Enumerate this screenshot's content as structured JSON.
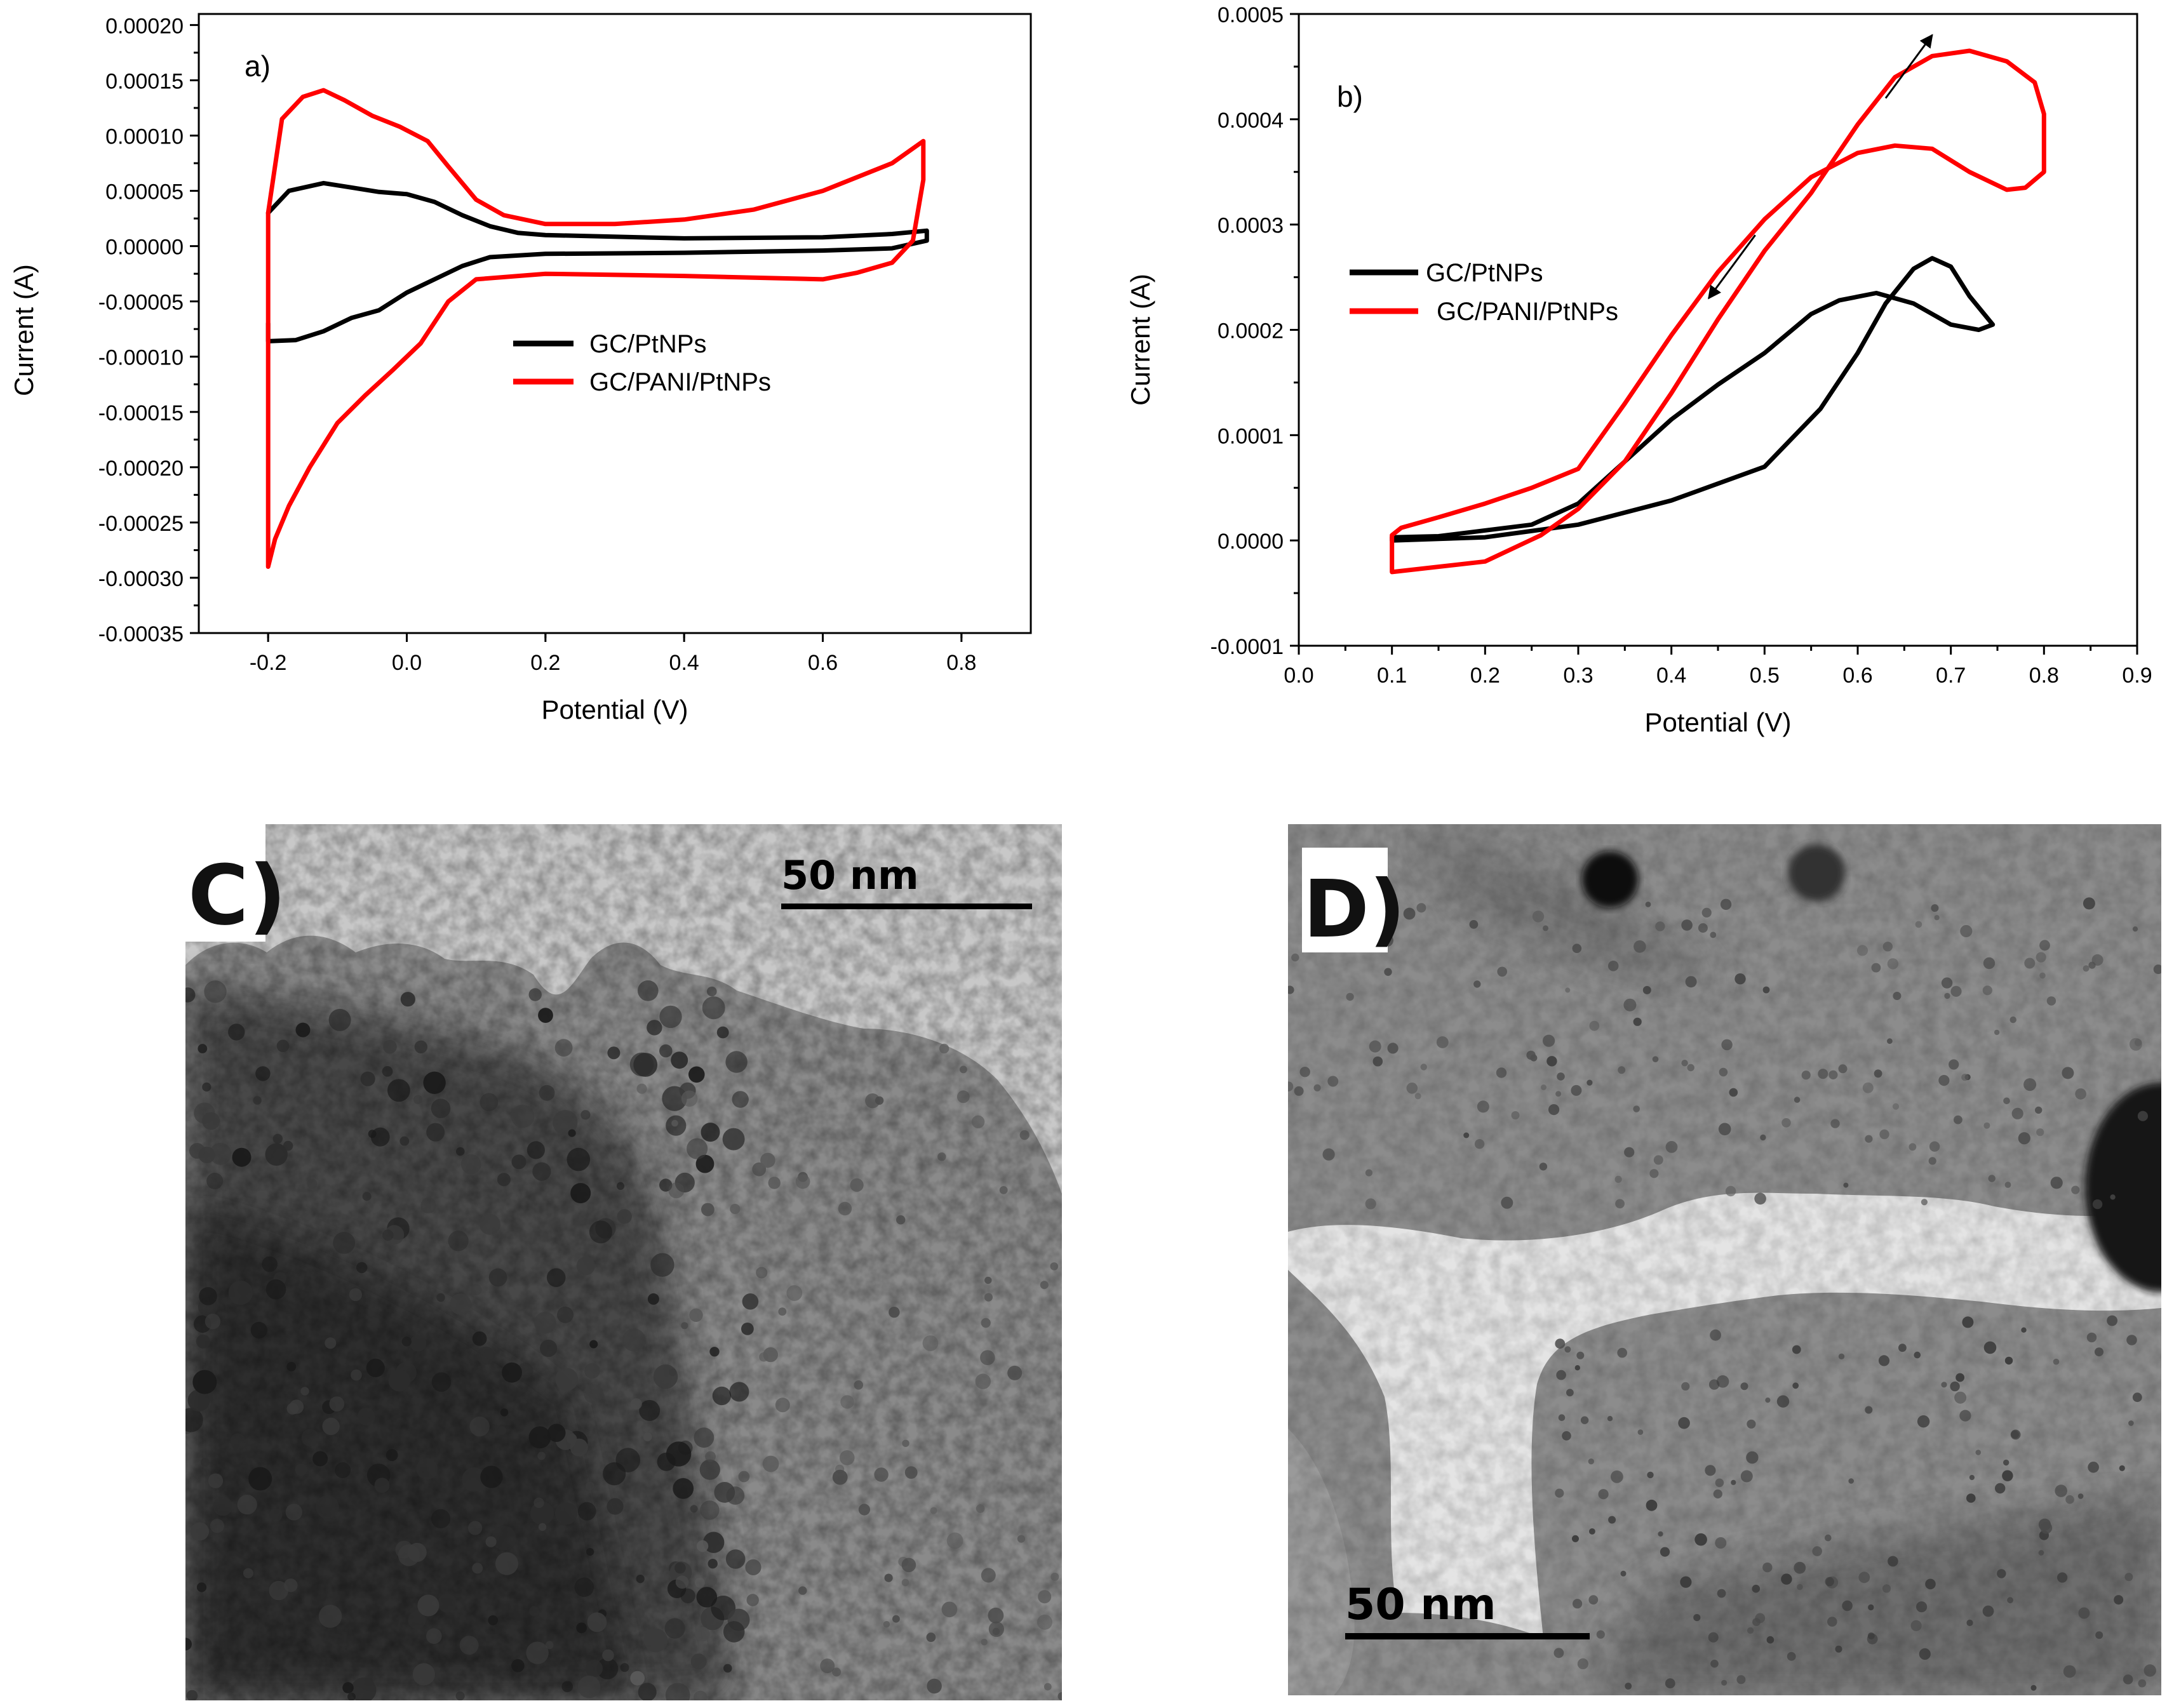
{
  "chart_data": [
    {
      "panel": "a)",
      "type": "line",
      "xlabel": "Potential (V)",
      "ylabel": "Current (A)",
      "xlim": [
        -0.3,
        0.9
      ],
      "ylim": [
        -0.00035,
        0.00021
      ],
      "xticks": [
        "-0.2",
        "0.0",
        "0.2",
        "0.4",
        "0.6",
        "0.8"
      ],
      "xtick_values": [
        -0.2,
        0.0,
        0.2,
        0.4,
        0.6,
        0.8
      ],
      "yticks": [
        "0.00020",
        "0.00015",
        "0.00010",
        "0.00005",
        "0.00000",
        "-0.00005",
        "-0.00010",
        "-0.00015",
        "-0.00020",
        "-0.00025",
        "-0.00030",
        "-0.00035"
      ],
      "ytick_values": [
        0.0002,
        0.00015,
        0.0001,
        5e-05,
        0,
        -5e-05,
        -0.0001,
        -0.00015,
        -0.0002,
        -0.00025,
        -0.0003,
        -0.00035
      ],
      "legend_position": "center-right",
      "series": [
        {
          "name": "GC/PtNPs",
          "color": "#000000",
          "points": [
            [
              -0.2,
              3e-05
            ],
            [
              -0.17,
              5e-05
            ],
            [
              -0.12,
              5.7e-05
            ],
            [
              -0.08,
              5.3e-05
            ],
            [
              -0.04,
              4.9e-05
            ],
            [
              0.0,
              4.7e-05
            ],
            [
              0.04,
              4e-05
            ],
            [
              0.08,
              2.8e-05
            ],
            [
              0.12,
              1.8e-05
            ],
            [
              0.16,
              1.2e-05
            ],
            [
              0.2,
              1e-05
            ],
            [
              0.4,
              7e-06
            ],
            [
              0.6,
              8e-06
            ],
            [
              0.7,
              1.1e-05
            ],
            [
              0.75,
              1.4e-05
            ],
            [
              0.75,
              5e-06
            ],
            [
              0.7,
              -2e-06
            ],
            [
              0.6,
              -4e-06
            ],
            [
              0.4,
              -6e-06
            ],
            [
              0.2,
              -7e-06
            ],
            [
              0.12,
              -1e-05
            ],
            [
              0.08,
              -1.8e-05
            ],
            [
              0.04,
              -3e-05
            ],
            [
              0.0,
              -4.2e-05
            ],
            [
              -0.04,
              -5.8e-05
            ],
            [
              -0.08,
              -6.5e-05
            ],
            [
              -0.12,
              -7.7e-05
            ],
            [
              -0.16,
              -8.5e-05
            ],
            [
              -0.2,
              -8.6e-05
            ],
            [
              -0.2,
              -7e-05
            ]
          ]
        },
        {
          "name": "GC/PANI/PtNPs",
          "color": "#ff0000",
          "points": [
            [
              -0.2,
              3e-05
            ],
            [
              -0.18,
              0.000115
            ],
            [
              -0.15,
              0.000135
            ],
            [
              -0.12,
              0.000141
            ],
            [
              -0.09,
              0.000132
            ],
            [
              -0.05,
              0.000118
            ],
            [
              -0.01,
              0.000108
            ],
            [
              0.03,
              9.5e-05
            ],
            [
              0.06,
              7.2e-05
            ],
            [
              0.1,
              4.2e-05
            ],
            [
              0.14,
              2.8e-05
            ],
            [
              0.2,
              2e-05
            ],
            [
              0.3,
              2e-05
            ],
            [
              0.4,
              2.4e-05
            ],
            [
              0.5,
              3.3e-05
            ],
            [
              0.6,
              5e-05
            ],
            [
              0.7,
              7.5e-05
            ],
            [
              0.745,
              9.5e-05
            ],
            [
              0.745,
              6e-05
            ],
            [
              0.73,
              5e-06
            ],
            [
              0.7,
              -1.5e-05
            ],
            [
              0.65,
              -2.4e-05
            ],
            [
              0.6,
              -3e-05
            ],
            [
              0.4,
              -2.7e-05
            ],
            [
              0.2,
              -2.5e-05
            ],
            [
              0.1,
              -3e-05
            ],
            [
              0.06,
              -5e-05
            ],
            [
              0.02,
              -8.8e-05
            ],
            [
              -0.02,
              -0.000112
            ],
            [
              -0.06,
              -0.000135
            ],
            [
              -0.1,
              -0.00016
            ],
            [
              -0.14,
              -0.0002
            ],
            [
              -0.17,
              -0.000235
            ],
            [
              -0.19,
              -0.000265
            ],
            [
              -0.2,
              -0.00029
            ],
            [
              -0.2,
              -0.0002
            ],
            [
              -0.2,
              3e-05
            ]
          ]
        }
      ]
    },
    {
      "panel": "b)",
      "type": "line",
      "xlabel": "Potential (V)",
      "ylabel": "Current (A)",
      "xlim": [
        0.0,
        0.9
      ],
      "ylim": [
        -0.0001,
        0.0005
      ],
      "xticks": [
        "0.0",
        "0.1",
        "0.2",
        "0.3",
        "0.4",
        "0.5",
        "0.6",
        "0.7",
        "0.8",
        "0.9"
      ],
      "xtick_values": [
        0.0,
        0.1,
        0.2,
        0.3,
        0.4,
        0.5,
        0.6,
        0.7,
        0.8,
        0.9
      ],
      "yticks": [
        "0.0005",
        "0.0004",
        "0.0003",
        "0.0002",
        "0.0001",
        "0.0000",
        "-0.0001"
      ],
      "ytick_values": [
        0.0005,
        0.0004,
        0.0003,
        0.0002,
        0.0001,
        0.0,
        -0.0001
      ],
      "legend_position": "upper-left",
      "series": [
        {
          "name": "GC/PtNPs",
          "color": "#000000",
          "points": [
            [
              0.1,
              0.0
            ],
            [
              0.2,
              3e-06
            ],
            [
              0.3,
              1.5e-05
            ],
            [
              0.4,
              3.8e-05
            ],
            [
              0.5,
              7e-05
            ],
            [
              0.56,
              0.000125
            ],
            [
              0.6,
              0.000178
            ],
            [
              0.63,
              0.000225
            ],
            [
              0.66,
              0.000258
            ],
            [
              0.68,
              0.000268
            ],
            [
              0.7,
              0.00026
            ],
            [
              0.72,
              0.000232
            ],
            [
              0.745,
              0.000205
            ],
            [
              0.73,
              0.0002
            ],
            [
              0.7,
              0.000205
            ],
            [
              0.66,
              0.000225
            ],
            [
              0.62,
              0.000235
            ],
            [
              0.58,
              0.000228
            ],
            [
              0.55,
              0.000215
            ],
            [
              0.5,
              0.000178
            ],
            [
              0.45,
              0.000148
            ],
            [
              0.4,
              0.000115
            ],
            [
              0.35,
              7.5e-05
            ],
            [
              0.3,
              3.5e-05
            ],
            [
              0.25,
              1.5e-05
            ],
            [
              0.15,
              4e-06
            ],
            [
              0.1,
              3e-06
            ],
            [
              0.1,
              0.0
            ]
          ]
        },
        {
          "name": "GC/PANI/PtNPs",
          "color": "#ff0000",
          "points": [
            [
              0.1,
              -3e-05
            ],
            [
              0.2,
              -2e-05
            ],
            [
              0.26,
              5e-06
            ],
            [
              0.3,
              3e-05
            ],
            [
              0.35,
              7.5e-05
            ],
            [
              0.4,
              0.00014
            ],
            [
              0.45,
              0.00021
            ],
            [
              0.5,
              0.000275
            ],
            [
              0.55,
              0.00033
            ],
            [
              0.6,
              0.000395
            ],
            [
              0.64,
              0.00044
            ],
            [
              0.68,
              0.00046
            ],
            [
              0.72,
              0.000465
            ],
            [
              0.76,
              0.000455
            ],
            [
              0.79,
              0.000435
            ],
            [
              0.8,
              0.000405
            ],
            [
              0.8,
              0.00035
            ],
            [
              0.78,
              0.000335
            ],
            [
              0.76,
              0.000333
            ],
            [
              0.72,
              0.00035
            ],
            [
              0.68,
              0.000372
            ],
            [
              0.64,
              0.000375
            ],
            [
              0.6,
              0.000368
            ],
            [
              0.55,
              0.000345
            ],
            [
              0.5,
              0.000305
            ],
            [
              0.45,
              0.000255
            ],
            [
              0.4,
              0.000195
            ],
            [
              0.35,
              0.00013
            ],
            [
              0.3,
              6.8e-05
            ],
            [
              0.25,
              5e-05
            ],
            [
              0.2,
              3.5e-05
            ],
            [
              0.15,
              2.2e-05
            ],
            [
              0.11,
              1.2e-05
            ],
            [
              0.1,
              5e-06
            ],
            [
              0.1,
              -3e-05
            ]
          ]
        }
      ],
      "annotations": [
        {
          "type": "arrow",
          "direction": "up-right",
          "from": [
            0.63,
            0.00042
          ],
          "to": [
            0.68,
            0.00048
          ]
        },
        {
          "type": "arrow",
          "direction": "down-left",
          "from": [
            0.49,
            0.00029
          ],
          "to": [
            0.44,
            0.00023
          ]
        }
      ]
    }
  ],
  "tem": [
    {
      "label": "C)",
      "scalebar": "50 nm"
    },
    {
      "label": "D)",
      "scalebar": "50 nm"
    }
  ]
}
